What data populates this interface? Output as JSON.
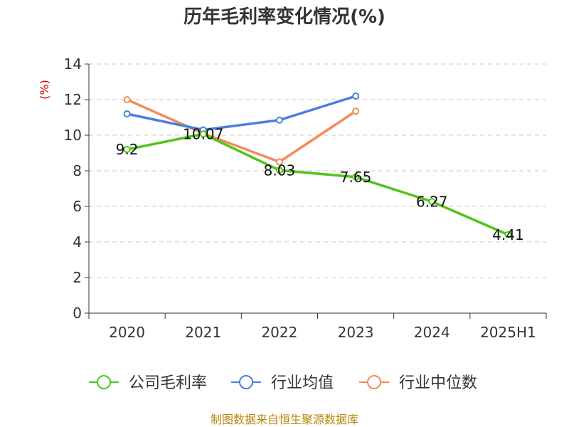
{
  "chart_data": {
    "type": "line",
    "title": "历年毛利率变化情况(%)",
    "ylabel": "(%)",
    "categories": [
      "2020",
      "2021",
      "2022",
      "2023",
      "2024",
      "2025H1"
    ],
    "ylim": [
      0,
      14
    ],
    "yticks": [
      0,
      2,
      4,
      6,
      8,
      10,
      12,
      14
    ],
    "grid": true,
    "legend_position": "bottom",
    "series": [
      {
        "name": "公司毛利率",
        "color": "#52c41a",
        "values": [
          9.2,
          10.07,
          8.03,
          7.65,
          6.27,
          4.41
        ],
        "labels": [
          "9.2",
          "10.07",
          "8.03",
          "7.65",
          "6.27",
          "4.41"
        ]
      },
      {
        "name": "行业均值",
        "color": "#4a7fdc",
        "values": [
          11.2,
          10.3,
          10.85,
          12.2,
          null,
          null
        ]
      },
      {
        "name": "行业中位数",
        "color": "#f28c5a",
        "values": [
          12.0,
          10.1,
          8.5,
          11.35,
          null,
          null
        ]
      }
    ]
  },
  "footer": "制图数据来自恒生聚源数据库"
}
